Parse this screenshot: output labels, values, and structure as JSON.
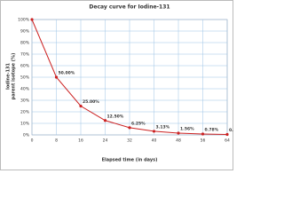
{
  "chart_data": {
    "type": "line",
    "title": "Decay curve for Iodine-131",
    "x_label": "Elapsed time (in days)",
    "y_label": [
      "Iodine-131",
      "parent isotope (%)"
    ],
    "x": [
      0,
      8,
      16,
      24,
      32,
      40,
      48,
      56,
      64
    ],
    "series": [
      {
        "name": "Iodine-131",
        "color": "#cc2222",
        "values": [
          100,
          50,
          25,
          12.5,
          6.25,
          3.13,
          1.56,
          0.78,
          0.39
        ],
        "value_labels": [
          null,
          "50.00%",
          "25.00%",
          "12.50%",
          "6.25%",
          "3.13%",
          "1.56%",
          "0.78%",
          "0.39%"
        ]
      }
    ],
    "xlim": [
      0,
      64
    ],
    "xticks": [
      0,
      8,
      16,
      24,
      32,
      40,
      48,
      56,
      64
    ],
    "ylim": [
      0,
      100
    ],
    "yticks": [
      {
        "value": 0,
        "label": "0%"
      },
      {
        "value": 10,
        "label": "10%"
      },
      {
        "value": 20,
        "label": "20%"
      },
      {
        "value": 30,
        "label": "30%"
      },
      {
        "value": 40,
        "label": "40%"
      },
      {
        "value": 50,
        "label": "50%"
      },
      {
        "value": 60,
        "label": "60%"
      },
      {
        "value": 70,
        "label": "70%"
      },
      {
        "value": 80,
        "label": "80%"
      },
      {
        "value": 90,
        "label": "90%"
      },
      {
        "value": 100,
        "label": "100%"
      }
    ],
    "grid": true
  }
}
